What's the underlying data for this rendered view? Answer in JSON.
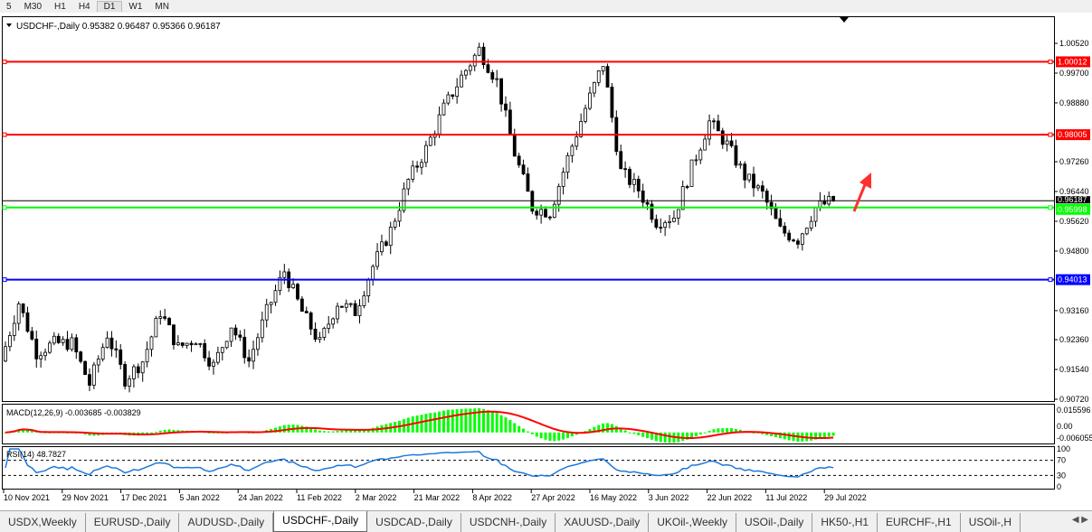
{
  "toolbar": {
    "timeframes": [
      "5",
      "M30",
      "H1",
      "H4",
      "D1",
      "W1",
      "MN"
    ],
    "active": "D1"
  },
  "chart": {
    "header": "USDCHF-,Daily",
    "ohlc": "0.95382 0.96487 0.95366 0.96187",
    "price_ticks": [
      "1.00520",
      "0.99700",
      "0.98880",
      "0.97260",
      "0.96440",
      "0.95620",
      "0.94800",
      "0.93160",
      "0.92360",
      "0.91540",
      "0.90720"
    ],
    "current_price": "0.96187",
    "levels": [
      {
        "value": "1.00012",
        "color": "#ff0000"
      },
      {
        "value": "0.98005",
        "color": "#ff0000"
      },
      {
        "value": "0.95998",
        "color": "#00ff00"
      },
      {
        "value": "0.94013",
        "color": "#0000ff"
      }
    ],
    "date_labels": [
      "10 Nov 2021",
      "29 Nov 2021",
      "17 Dec 2021",
      "5 Jan 2022",
      "24 Jan 2022",
      "11 Feb 2022",
      "2 Mar 2022",
      "21 Mar 2022",
      "8 Apr 2022",
      "27 Apr 2022",
      "16 May 2022",
      "3 Jun 2022",
      "22 Jun 2022",
      "11 Jul 2022",
      "29 Jul 2022"
    ],
    "arrow": {
      "color": "#ff3030",
      "direction": "up"
    }
  },
  "macd": {
    "label": "MACD(12,26,9) -0.003685 -0.003829",
    "ticks": [
      "0.015596",
      "0.00",
      "-0.006055"
    ],
    "hist_color": "#00ff00",
    "signal_color": "#ff0000"
  },
  "rsi": {
    "label": "RSI(14) 48.7827",
    "ticks": [
      "100",
      "70",
      "30",
      "0"
    ],
    "color": "#1e78dc"
  },
  "chart_data": {
    "type": "candlestick",
    "symbol": "USDCHF-",
    "timeframe": "Daily",
    "ylim": [
      0.9072,
      1.0052
    ],
    "close_path": [
      0.9177,
      0.9338,
      0.9201,
      0.9226,
      0.9226,
      0.9114,
      0.9251,
      0.9127,
      0.9177,
      0.9313,
      0.9214,
      0.9239,
      0.9164,
      0.9276,
      0.9177,
      0.9313,
      0.9425,
      0.9313,
      0.9226,
      0.9338,
      0.9313,
      0.9438,
      0.9537,
      0.9674,
      0.9761,
      0.9873,
      0.996,
      1.0035,
      0.9948,
      0.9749,
      0.96,
      0.9587,
      0.9736,
      0.9873,
      0.9997,
      0.9699,
      0.9649,
      0.9562,
      0.9575,
      0.9711,
      0.9836,
      0.9773,
      0.9686,
      0.9637,
      0.9537,
      0.9512,
      0.96,
      0.9619
    ]
  },
  "tabs": [
    {
      "label": "USDX,Weekly"
    },
    {
      "label": "EURUSD-,Daily"
    },
    {
      "label": "AUDUSD-,Daily"
    },
    {
      "label": "USDCHF-,Daily",
      "active": true
    },
    {
      "label": "USDCAD-,Daily"
    },
    {
      "label": "USDCNH-,Daily"
    },
    {
      "label": "XAUUSD-,Daily"
    },
    {
      "label": "UKOil-,Weekly"
    },
    {
      "label": "USOil-,Daily"
    },
    {
      "label": "HK50-,H1"
    },
    {
      "label": "EURCHF-,H1"
    },
    {
      "label": "USOil-,H"
    }
  ]
}
